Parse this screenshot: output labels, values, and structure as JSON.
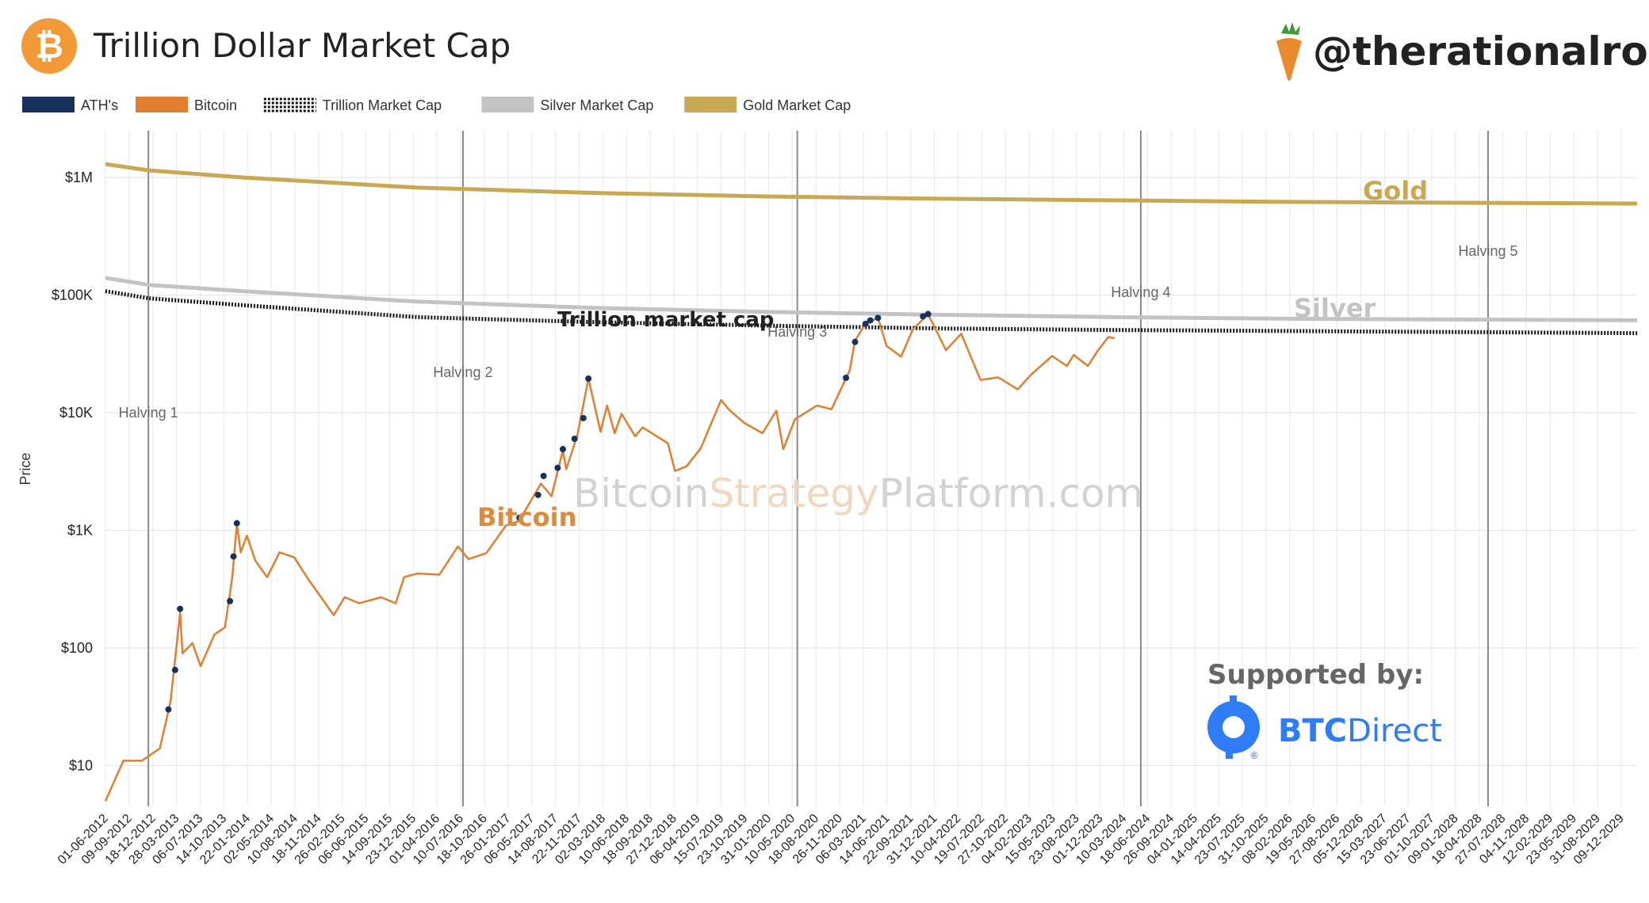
{
  "title": "Trillion Dollar Market Cap",
  "handle": "@therationalroot",
  "colors": {
    "bitcoin": "#e07f2f",
    "ath": "#16325c",
    "gold": "#c9a853",
    "silver": "#c3c3c3",
    "trillion": "#111111",
    "brand_orange": "#f29a38",
    "btcdirect": "#2e7cf6"
  },
  "legend": [
    {
      "label": "ATH's",
      "color": "#16325c",
      "style": "solid"
    },
    {
      "label": "Bitcoin",
      "color": "#e07f2f",
      "style": "solid"
    },
    {
      "label": "Trillion Market Cap",
      "color": "#111111",
      "style": "dotted"
    },
    {
      "label": "Silver Market Cap",
      "color": "#c3c3c3",
      "style": "solid"
    },
    {
      "label": "Gold Market Cap",
      "color": "#c9a853",
      "style": "solid"
    }
  ],
  "watermark": {
    "part1": "Bitcoin",
    "part2": "Strategy",
    "part3": "Platform.com"
  },
  "sponsor": {
    "label": "Supported by:",
    "brand_bold": "BTC",
    "brand_light": "Direct",
    "mark": "®"
  },
  "icons": [
    "bitcoin-logo-icon",
    "carrot-icon",
    "btcdirect-logo-icon"
  ],
  "chart_data": {
    "type": "line",
    "title": "Trillion Dollar Market Cap",
    "ylabel": "Price",
    "xlabel": "",
    "y_scale": "log",
    "ylim": [
      4.5,
      2500000
    ],
    "xlim": [
      "2012-06-01",
      "2029-12-31"
    ],
    "grid": true,
    "legend_position": "top-left",
    "yticks": [
      {
        "value": 10,
        "label": "$10"
      },
      {
        "value": 100,
        "label": "$100"
      },
      {
        "value": 1000,
        "label": "$1K"
      },
      {
        "value": 10000,
        "label": "$10K"
      },
      {
        "value": 100000,
        "label": "$100K"
      },
      {
        "value": 1000000,
        "label": "$1M"
      }
    ],
    "xtick_labels": [
      "01-06-2012",
      "09-09-2012",
      "18-12-2012",
      "28-03-2013",
      "06-07-2013",
      "14-10-2013",
      "22-01-2014",
      "02-05-2014",
      "10-08-2014",
      "18-11-2014",
      "26-02-2015",
      "06-06-2015",
      "14-09-2015",
      "23-12-2015",
      "01-04-2016",
      "10-07-2016",
      "18-10-2016",
      "26-01-2017",
      "06-05-2017",
      "14-08-2017",
      "22-11-2017",
      "02-03-2018",
      "10-06-2018",
      "18-09-2018",
      "27-12-2018",
      "06-04-2019",
      "15-07-2019",
      "23-10-2019",
      "31-01-2020",
      "10-05-2020",
      "18-08-2020",
      "26-11-2020",
      "06-03-2021",
      "14-06-2021",
      "22-09-2021",
      "31-12-2021",
      "10-04-2022",
      "19-07-2022",
      "27-10-2022",
      "04-02-2023",
      "15-05-2023",
      "23-08-2023",
      "01-12-2023",
      "10-03-2024",
      "18-06-2024",
      "26-09-2024",
      "04-01-2025",
      "14-04-2025",
      "23-07-2025",
      "31-10-2025",
      "08-02-2026",
      "19-05-2026",
      "27-08-2026",
      "05-12-2026",
      "15-03-2027",
      "23-06-2027",
      "01-10-2027",
      "09-01-2028",
      "18-04-2028",
      "27-07-2028",
      "04-11-2028",
      "12-02-2029",
      "23-05-2029",
      "31-08-2029",
      "09-12-2029"
    ],
    "halvings": [
      {
        "label": "Halving 1",
        "date": "2012-11-28"
      },
      {
        "label": "Halving 2",
        "date": "2016-07-09"
      },
      {
        "label": "Halving 3",
        "date": "2020-05-11"
      },
      {
        "label": "Halving 4",
        "date": "2024-04-20"
      },
      {
        "label": "Halving 5",
        "date": "2028-04-15"
      }
    ],
    "series_labels": {
      "gold": "Gold",
      "silver": "Silver",
      "bitcoin": "Bitcoin",
      "trillion": "Trillion market cap"
    },
    "series": [
      {
        "name": "Gold Market Cap",
        "color": "#c9a853",
        "points": [
          [
            "2012-06-01",
            1300000
          ],
          [
            "2012-12-01",
            1150000
          ],
          [
            "2014-01-01",
            1000000
          ],
          [
            "2016-01-01",
            820000
          ],
          [
            "2018-01-01",
            740000
          ],
          [
            "2020-01-01",
            690000
          ],
          [
            "2022-01-01",
            660000
          ],
          [
            "2024-01-01",
            640000
          ],
          [
            "2026-01-01",
            620000
          ],
          [
            "2028-01-01",
            610000
          ],
          [
            "2029-12-31",
            600000
          ]
        ]
      },
      {
        "name": "Silver Market Cap",
        "color": "#c3c3c3",
        "points": [
          [
            "2012-06-01",
            140000
          ],
          [
            "2012-12-01",
            122000
          ],
          [
            "2014-01-01",
            108000
          ],
          [
            "2016-01-01",
            88000
          ],
          [
            "2018-01-01",
            78000
          ],
          [
            "2020-01-01",
            72000
          ],
          [
            "2022-01-01",
            68000
          ],
          [
            "2024-01-01",
            65000
          ],
          [
            "2026-01-01",
            63000
          ],
          [
            "2029-12-31",
            61000
          ]
        ]
      },
      {
        "name": "Trillion Market Cap",
        "color": "#111111",
        "points": [
          [
            "2012-06-01",
            108000
          ],
          [
            "2012-12-01",
            94000
          ],
          [
            "2014-01-01",
            82000
          ],
          [
            "2016-01-01",
            65000
          ],
          [
            "2018-01-01",
            59000
          ],
          [
            "2020-01-01",
            55000
          ],
          [
            "2022-01-01",
            52000
          ],
          [
            "2024-01-01",
            50500
          ],
          [
            "2026-01-01",
            49500
          ],
          [
            "2029-12-31",
            47500
          ]
        ]
      },
      {
        "name": "Bitcoin",
        "color": "#e07f2f",
        "points": [
          [
            "2012-06-01",
            5
          ],
          [
            "2012-08-15",
            11
          ],
          [
            "2012-11-01",
            11
          ],
          [
            "2013-01-15",
            14
          ],
          [
            "2013-03-01",
            35
          ],
          [
            "2013-04-10",
            200
          ],
          [
            "2013-04-20",
            90
          ],
          [
            "2013-06-01",
            110
          ],
          [
            "2013-07-05",
            70
          ],
          [
            "2013-09-01",
            130
          ],
          [
            "2013-10-15",
            150
          ],
          [
            "2013-11-15",
            400
          ],
          [
            "2013-12-04",
            1150
          ],
          [
            "2013-12-20",
            650
          ],
          [
            "2014-01-15",
            900
          ],
          [
            "2014-02-20",
            550
          ],
          [
            "2014-04-10",
            400
          ],
          [
            "2014-06-01",
            650
          ],
          [
            "2014-08-01",
            590
          ],
          [
            "2014-10-01",
            380
          ],
          [
            "2015-01-14",
            190
          ],
          [
            "2015-03-01",
            270
          ],
          [
            "2015-05-01",
            240
          ],
          [
            "2015-08-01",
            270
          ],
          [
            "2015-10-01",
            240
          ],
          [
            "2015-11-05",
            400
          ],
          [
            "2016-01-01",
            430
          ],
          [
            "2016-04-01",
            420
          ],
          [
            "2016-06-18",
            730
          ],
          [
            "2016-08-01",
            570
          ],
          [
            "2016-10-15",
            640
          ],
          [
            "2017-01-05",
            1100
          ],
          [
            "2017-03-01",
            1200
          ],
          [
            "2017-06-01",
            2500
          ],
          [
            "2017-07-15",
            1950
          ],
          [
            "2017-09-01",
            4800
          ],
          [
            "2017-09-15",
            3300
          ],
          [
            "2017-11-01",
            6500
          ],
          [
            "2017-12-17",
            19500
          ],
          [
            "2018-02-06",
            6900
          ],
          [
            "2018-03-05",
            11500
          ],
          [
            "2018-04-06",
            6700
          ],
          [
            "2018-05-05",
            9800
          ],
          [
            "2018-07-01",
            6300
          ],
          [
            "2018-08-01",
            7500
          ],
          [
            "2018-11-15",
            5500
          ],
          [
            "2018-12-15",
            3200
          ],
          [
            "2019-02-01",
            3500
          ],
          [
            "2019-04-02",
            5000
          ],
          [
            "2019-06-26",
            12800
          ],
          [
            "2019-08-01",
            10500
          ],
          [
            "2019-10-01",
            8200
          ],
          [
            "2019-12-17",
            6700
          ],
          [
            "2020-02-13",
            10400
          ],
          [
            "2020-03-13",
            4900
          ],
          [
            "2020-05-01",
            8800
          ],
          [
            "2020-08-01",
            11500
          ],
          [
            "2020-10-01",
            10700
          ],
          [
            "2020-12-17",
            23000
          ],
          [
            "2021-01-08",
            41000
          ],
          [
            "2021-02-20",
            57000
          ],
          [
            "2021-04-14",
            64000
          ],
          [
            "2021-05-20",
            37000
          ],
          [
            "2021-07-20",
            30000
          ],
          [
            "2021-09-07",
            51000
          ],
          [
            "2021-11-10",
            69000
          ],
          [
            "2022-01-24",
            34000
          ],
          [
            "2022-03-29",
            47000
          ],
          [
            "2022-06-18",
            19000
          ],
          [
            "2022-09-01",
            20000
          ],
          [
            "2022-11-21",
            15800
          ],
          [
            "2023-01-15",
            21000
          ],
          [
            "2023-04-14",
            30400
          ],
          [
            "2023-06-15",
            25000
          ],
          [
            "2023-07-14",
            31000
          ],
          [
            "2023-09-11",
            25000
          ],
          [
            "2023-10-24",
            34000
          ],
          [
            "2023-12-06",
            44000
          ],
          [
            "2024-01-01",
            43000
          ]
        ]
      },
      {
        "name": "ATH's",
        "color": "#16325c",
        "points": [
          [
            "2013-02-20",
            30
          ],
          [
            "2013-03-20",
            65
          ],
          [
            "2013-04-10",
            215
          ],
          [
            "2013-11-05",
            250
          ],
          [
            "2013-11-20",
            600
          ],
          [
            "2013-12-04",
            1150
          ],
          [
            "2017-03-03",
            1280
          ],
          [
            "2017-05-20",
            2000
          ],
          [
            "2017-06-12",
            2900
          ],
          [
            "2017-08-10",
            3400
          ],
          [
            "2017-09-01",
            4900
          ],
          [
            "2017-10-20",
            6000
          ],
          [
            "2017-11-26",
            9000
          ],
          [
            "2017-12-17",
            19500
          ],
          [
            "2020-12-01",
            19800
          ],
          [
            "2021-01-08",
            40000
          ],
          [
            "2021-02-21",
            57000
          ],
          [
            "2021-03-13",
            61000
          ],
          [
            "2021-04-14",
            64000
          ],
          [
            "2021-10-20",
            66000
          ],
          [
            "2021-11-10",
            69000
          ]
        ]
      }
    ]
  }
}
